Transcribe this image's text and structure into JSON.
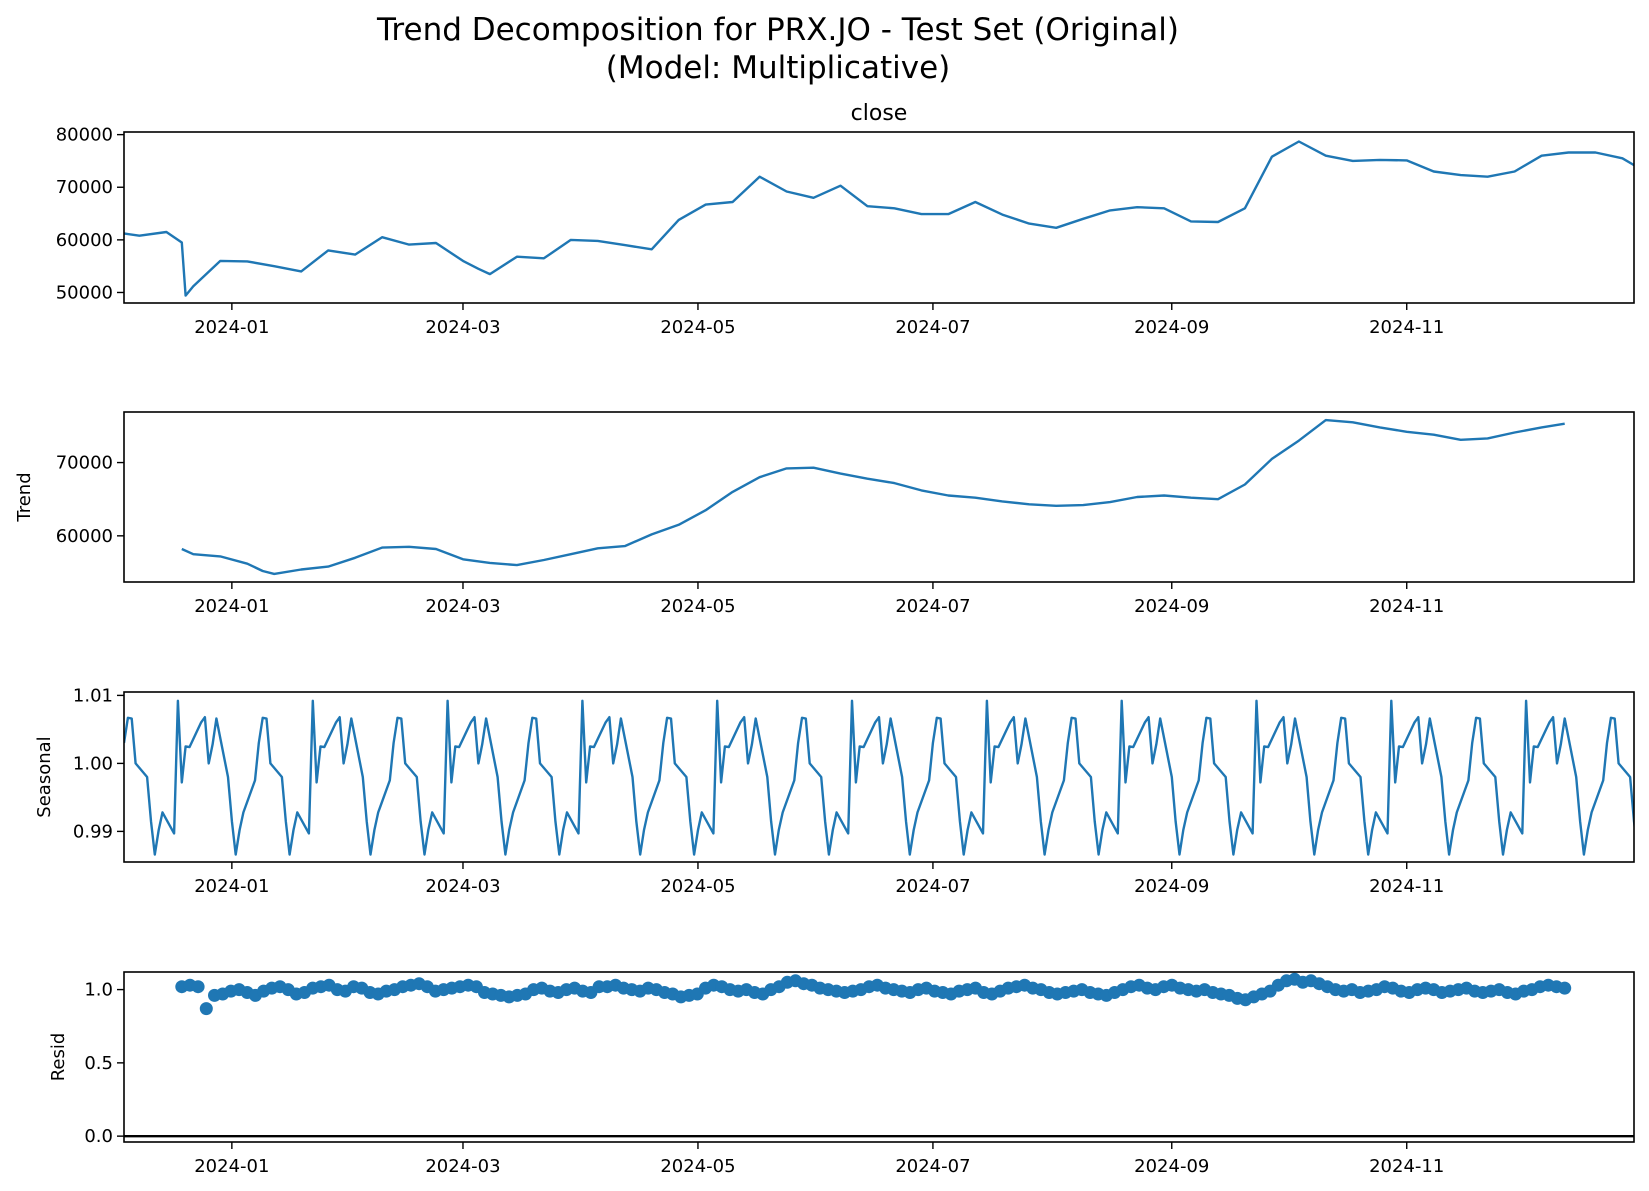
{
  "figure": {
    "title_line1": "Trend Decomposition for PRX.JO - Test Set (Original)",
    "title_line2": "(Model: Multiplicative)",
    "line_color": "#1f77b4"
  },
  "chart_data": [
    {
      "type": "line",
      "title": "close",
      "ylabel": "",
      "x_range": [
        "2023-12-04",
        "2024-12-30"
      ],
      "ylim": [
        48000,
        80500
      ],
      "yticks": [
        50000,
        60000,
        70000,
        80000
      ],
      "yticklabels": [
        "50000",
        "60000",
        "70000",
        "80000"
      ],
      "xticks": [
        "2024-01-01",
        "2024-03-01",
        "2024-05-01",
        "2024-07-01",
        "2024-09-01",
        "2024-11-01"
      ],
      "xticklabels": [
        "2024-01",
        "2024-03",
        "2024-05",
        "2024-07",
        "2024-09",
        "2024-11"
      ],
      "series": [
        {
          "x": [
            "2023-12-04",
            "2023-12-08",
            "2023-12-15",
            "2023-12-19",
            "2023-12-20",
            "2023-12-22",
            "2023-12-29",
            "2024-01-05",
            "2024-01-12",
            "2024-01-19",
            "2024-01-26",
            "2024-02-02",
            "2024-02-09",
            "2024-02-16",
            "2024-02-23",
            "2024-03-01",
            "2024-03-05",
            "2024-03-08",
            "2024-03-15",
            "2024-03-22",
            "2024-03-29",
            "2024-04-05",
            "2024-04-12",
            "2024-04-19",
            "2024-04-26",
            "2024-05-03",
            "2024-05-10",
            "2024-05-17",
            "2024-05-24",
            "2024-05-31",
            "2024-06-07",
            "2024-06-14",
            "2024-06-21",
            "2024-06-28",
            "2024-07-05",
            "2024-07-12",
            "2024-07-19",
            "2024-07-26",
            "2024-08-02",
            "2024-08-09",
            "2024-08-16",
            "2024-08-23",
            "2024-08-30",
            "2024-09-06",
            "2024-09-13",
            "2024-09-20",
            "2024-09-27",
            "2024-10-04",
            "2024-10-11",
            "2024-10-18",
            "2024-10-25",
            "2024-11-01",
            "2024-11-08",
            "2024-11-15",
            "2024-11-22",
            "2024-11-29",
            "2024-12-06",
            "2024-12-13",
            "2024-12-20",
            "2024-12-27",
            "2024-12-30"
          ],
          "values": [
            61200,
            60800,
            61500,
            59500,
            49400,
            51200,
            56000,
            55900,
            55000,
            54000,
            58000,
            57200,
            60500,
            59100,
            59400,
            56000,
            54500,
            53500,
            56800,
            56500,
            60000,
            59800,
            59000,
            58200,
            63800,
            66700,
            67200,
            72000,
            69200,
            68000,
            70300,
            66400,
            66000,
            64900,
            64900,
            67200,
            64800,
            63100,
            62300,
            64000,
            65600,
            66200,
            66000,
            63500,
            63400,
            66000,
            75800,
            78700,
            76000,
            75000,
            75200,
            75100,
            73000,
            72300,
            72000,
            73000,
            76000,
            76600,
            76600,
            75500,
            74200
          ]
        }
      ]
    },
    {
      "type": "line",
      "title": "",
      "ylabel": "Trend",
      "x_range": [
        "2023-12-04",
        "2024-12-30"
      ],
      "ylim": [
        53700,
        76900
      ],
      "yticks": [
        60000,
        70000
      ],
      "yticklabels": [
        "60000",
        "70000"
      ],
      "xticks": [
        "2024-01-01",
        "2024-03-01",
        "2024-05-01",
        "2024-07-01",
        "2024-09-01",
        "2024-11-01"
      ],
      "xticklabels": [
        "2024-01",
        "2024-03",
        "2024-05",
        "2024-07",
        "2024-09",
        "2024-11"
      ],
      "series": [
        {
          "x": [
            "2023-12-19",
            "2023-12-22",
            "2023-12-29",
            "2024-01-05",
            "2024-01-09",
            "2024-01-12",
            "2024-01-19",
            "2024-01-26",
            "2024-02-02",
            "2024-02-09",
            "2024-02-16",
            "2024-02-23",
            "2024-03-01",
            "2024-03-08",
            "2024-03-15",
            "2024-03-22",
            "2024-03-29",
            "2024-04-05",
            "2024-04-12",
            "2024-04-19",
            "2024-04-26",
            "2024-05-03",
            "2024-05-10",
            "2024-05-17",
            "2024-05-24",
            "2024-05-31",
            "2024-06-07",
            "2024-06-14",
            "2024-06-21",
            "2024-06-28",
            "2024-07-05",
            "2024-07-12",
            "2024-07-19",
            "2024-07-26",
            "2024-08-02",
            "2024-08-09",
            "2024-08-16",
            "2024-08-23",
            "2024-08-30",
            "2024-09-06",
            "2024-09-13",
            "2024-09-20",
            "2024-09-27",
            "2024-10-04",
            "2024-10-11",
            "2024-10-18",
            "2024-10-25",
            "2024-11-01",
            "2024-11-08",
            "2024-11-15",
            "2024-11-22",
            "2024-11-29",
            "2024-12-06",
            "2024-12-12"
          ],
          "values": [
            58200,
            57500,
            57200,
            56200,
            55200,
            54800,
            55400,
            55800,
            57000,
            58400,
            58500,
            58200,
            56800,
            56300,
            56000,
            56700,
            57500,
            58300,
            58600,
            60200,
            61500,
            63500,
            66000,
            68000,
            69200,
            69300,
            68500,
            67800,
            67200,
            66200,
            65500,
            65200,
            64700,
            64300,
            64100,
            64200,
            64600,
            65300,
            65500,
            65200,
            65000,
            67000,
            70500,
            73000,
            75800,
            75500,
            74800,
            74200,
            73800,
            73100,
            73300,
            74100,
            74800,
            75300
          ]
        }
      ]
    },
    {
      "type": "line",
      "title": "",
      "ylabel": "Seasonal",
      "x_range": [
        "2023-12-04",
        "2024-12-30"
      ],
      "ylim": [
        0.9855,
        1.0105
      ],
      "yticks": [
        0.99,
        1.0,
        1.01
      ],
      "yticklabels": [
        "0.99",
        "1.00",
        "1.01"
      ],
      "xticks": [
        "2024-01-01",
        "2024-03-01",
        "2024-05-01",
        "2024-07-01",
        "2024-09-01",
        "2024-11-01"
      ],
      "xticklabels": [
        "2024-01",
        "2024-03",
        "2024-05",
        "2024-07",
        "2024-09",
        "2024-11"
      ],
      "period_days": 35,
      "pattern": {
        "offset_days": [
          0,
          1,
          2,
          3,
          6,
          7,
          8,
          9,
          10,
          13,
          14,
          15,
          16,
          17,
          20,
          21,
          22,
          23,
          24,
          27,
          28,
          29,
          30,
          31,
          34
        ],
        "values": [
          1.003,
          1.0067,
          1.0066,
          1.0,
          0.998,
          0.9915,
          0.9866,
          0.9902,
          0.9928,
          0.9897,
          1.0092,
          0.9972,
          1.0025,
          1.0024,
          1.006,
          1.0068,
          1.0,
          1.0028,
          1.0066,
          0.998,
          0.9915,
          0.9866,
          0.9902,
          0.9928,
          0.9975
        ]
      }
    },
    {
      "type": "scatter",
      "title": "",
      "ylabel": "Resid",
      "x_range": [
        "2023-12-04",
        "2024-12-30"
      ],
      "ylim": [
        -0.04,
        1.12
      ],
      "yticks": [
        0.0,
        0.5,
        1.0
      ],
      "yticklabels": [
        "0.0",
        "0.5",
        "1.0"
      ],
      "xticks": [
        "2024-01-01",
        "2024-03-01",
        "2024-05-01",
        "2024-07-01",
        "2024-09-01",
        "2024-11-01"
      ],
      "xticklabels": [
        "2024-01",
        "2024-03",
        "2024-05",
        "2024-07",
        "2024-09",
        "2024-11"
      ],
      "baseline": 0.0,
      "x_start": "2023-12-19",
      "x_end": "2024-12-12",
      "series": [
        {
          "values": [
            1.02,
            1.03,
            1.02,
            0.87,
            0.96,
            0.97,
            0.99,
            1.0,
            0.98,
            0.96,
            0.99,
            1.01,
            1.02,
            1.0,
            0.97,
            0.98,
            1.01,
            1.02,
            1.03,
            1.0,
            0.99,
            1.02,
            1.01,
            0.98,
            0.97,
            0.99,
            1.0,
            1.02,
            1.03,
            1.04,
            1.02,
            0.99,
            1.0,
            1.01,
            1.02,
            1.03,
            1.02,
            0.98,
            0.97,
            0.96,
            0.95,
            0.96,
            0.97,
            1.0,
            1.01,
            0.99,
            0.98,
            1.0,
            1.01,
            0.99,
            0.98,
            1.02,
            1.02,
            1.03,
            1.01,
            1.0,
            0.99,
            1.01,
            1.0,
            0.98,
            0.97,
            0.95,
            0.96,
            0.97,
            1.01,
            1.03,
            1.02,
            1.0,
            0.99,
            1.0,
            0.98,
            0.97,
            1.0,
            1.02,
            1.05,
            1.06,
            1.04,
            1.03,
            1.01,
            1.0,
            0.99,
            0.98,
            0.99,
            1.0,
            1.02,
            1.03,
            1.01,
            1.0,
            0.99,
            0.98,
            1.0,
            1.01,
            0.99,
            0.98,
            0.97,
            0.99,
            1.0,
            1.01,
            0.98,
            0.97,
            0.99,
            1.01,
            1.02,
            1.03,
            1.01,
            1.0,
            0.98,
            0.97,
            0.98,
            0.99,
            1.0,
            0.98,
            0.97,
            0.96,
            0.98,
            1.0,
            1.02,
            1.03,
            1.01,
            1.0,
            1.02,
            1.03,
            1.01,
            1.0,
            0.99,
            1.0,
            0.98,
            0.97,
            0.96,
            0.94,
            0.93,
            0.95,
            0.97,
            0.99,
            1.03,
            1.06,
            1.07,
            1.05,
            1.06,
            1.04,
            1.02,
            1.0,
            0.99,
            1.0,
            0.98,
            0.99,
            1.0,
            1.02,
            1.01,
            0.99,
            0.98,
            1.0,
            1.01,
            1.0,
            0.98,
            0.99,
            1.0,
            1.01,
            0.99,
            0.98,
            0.99,
            1.0,
            0.98,
            0.97,
            0.99,
            1.0,
            1.02,
            1.03,
            1.02,
            1.01
          ]
        }
      ]
    }
  ]
}
